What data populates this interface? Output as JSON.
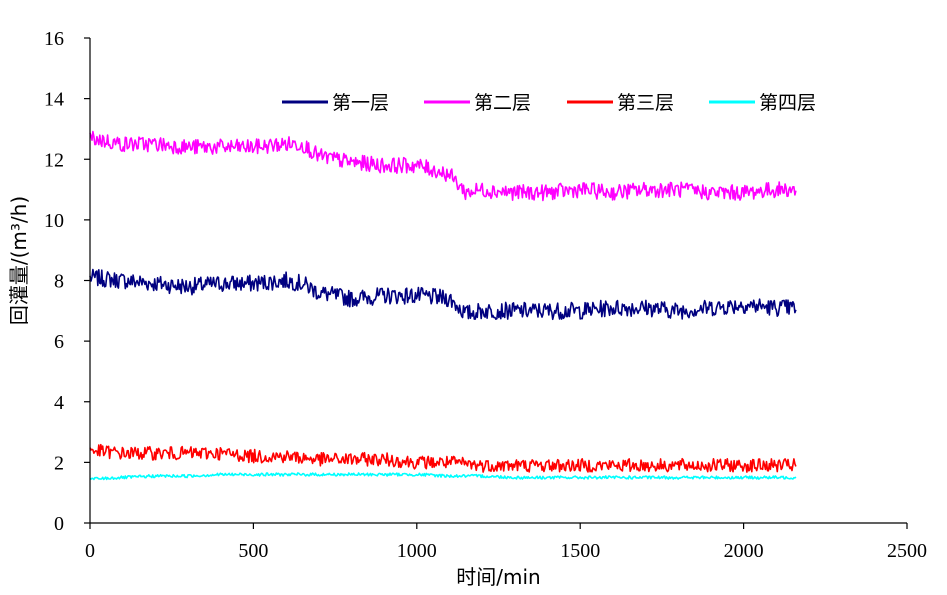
{
  "chart_data": {
    "type": "line",
    "xlabel": "时间/min",
    "ylabel": "回灌量/(m³/h)",
    "xlim": [
      0,
      2500
    ],
    "ylim": [
      0,
      16
    ],
    "xticks": [
      0,
      500,
      1000,
      1500,
      2000,
      2500
    ],
    "yticks": [
      0,
      2,
      4,
      6,
      8,
      10,
      12,
      14,
      16
    ],
    "grid": false,
    "legend_position": "top-right",
    "series": [
      {
        "name": "第一层",
        "color": "#000080",
        "x": [
          0,
          100,
          200,
          300,
          400,
          500,
          600,
          650,
          700,
          800,
          900,
          1000,
          1100,
          1150,
          1200,
          1300,
          1400,
          1500,
          1600,
          1700,
          1800,
          1900,
          2000,
          2100,
          2160
        ],
        "values": [
          8.1,
          8.0,
          7.9,
          7.8,
          7.9,
          7.9,
          8.0,
          7.9,
          7.6,
          7.4,
          7.5,
          7.5,
          7.4,
          6.9,
          7.0,
          7.0,
          7.0,
          7.0,
          7.1,
          7.1,
          7.0,
          7.1,
          7.2,
          7.1,
          7.1
        ]
      },
      {
        "name": "第二层",
        "color": "#FF00FF",
        "x": [
          0,
          100,
          200,
          300,
          400,
          500,
          600,
          650,
          700,
          800,
          900,
          1000,
          1100,
          1150,
          1200,
          1300,
          1400,
          1500,
          1600,
          1700,
          1800,
          1900,
          2000,
          2100,
          2160
        ],
        "values": [
          12.7,
          12.5,
          12.5,
          12.4,
          12.4,
          12.4,
          12.5,
          12.5,
          12.1,
          11.9,
          11.8,
          11.8,
          11.5,
          10.9,
          11.0,
          10.9,
          10.9,
          11.0,
          10.9,
          11.0,
          11.0,
          10.9,
          10.9,
          11.0,
          11.0
        ]
      },
      {
        "name": "第三层",
        "color": "#FF0000",
        "x": [
          0,
          100,
          200,
          300,
          400,
          500,
          600,
          700,
          800,
          900,
          1000,
          1100,
          1200,
          1300,
          1400,
          1500,
          1600,
          1700,
          1800,
          1900,
          2000,
          2100,
          2160
        ],
        "values": [
          2.4,
          2.3,
          2.3,
          2.3,
          2.3,
          2.2,
          2.2,
          2.1,
          2.1,
          2.1,
          2.0,
          2.0,
          1.9,
          1.9,
          1.9,
          1.9,
          1.9,
          1.9,
          1.9,
          1.9,
          1.9,
          1.9,
          1.9
        ]
      },
      {
        "name": "第四层",
        "color": "#00FFFF",
        "x": [
          0,
          100,
          200,
          300,
          400,
          500,
          600,
          700,
          800,
          900,
          1000,
          1100,
          1200,
          1300,
          1400,
          1500,
          1600,
          1700,
          1800,
          1900,
          2000,
          2100,
          2160
        ],
        "values": [
          1.45,
          1.5,
          1.55,
          1.55,
          1.6,
          1.6,
          1.6,
          1.6,
          1.6,
          1.6,
          1.6,
          1.55,
          1.55,
          1.5,
          1.5,
          1.5,
          1.5,
          1.5,
          1.5,
          1.5,
          1.5,
          1.5,
          1.5
        ]
      }
    ]
  }
}
